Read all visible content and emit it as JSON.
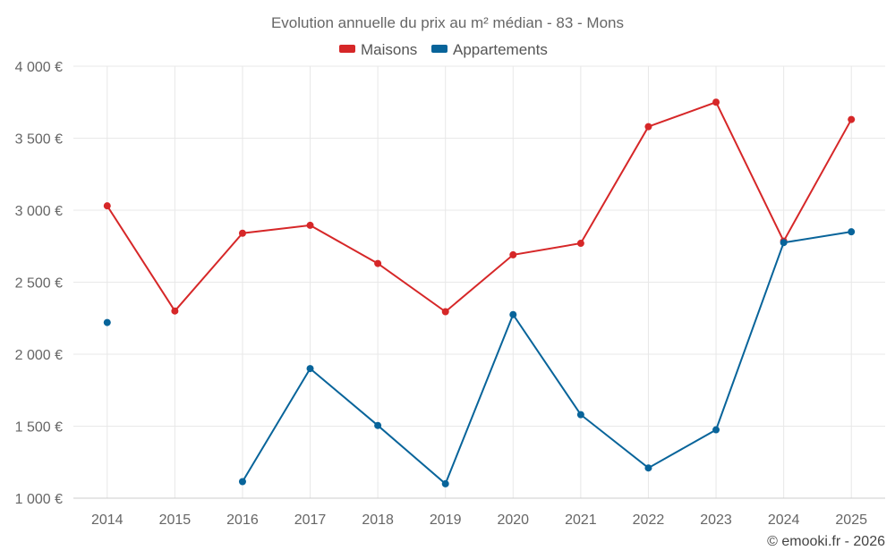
{
  "chart_data": {
    "type": "line",
    "title": "Evolution annuelle du prix au m² médian - 83 - Mons",
    "categories": [
      "2014",
      "2015",
      "2016",
      "2017",
      "2018",
      "2019",
      "2020",
      "2021",
      "2022",
      "2023",
      "2024",
      "2025"
    ],
    "series": [
      {
        "name": "Maisons",
        "color": "#d62728",
        "values": [
          3030,
          2300,
          2840,
          2895,
          2630,
          2295,
          2690,
          2770,
          3580,
          3750,
          2785,
          3630
        ]
      },
      {
        "name": "Appartements",
        "color": "#08649a",
        "values": [
          2220,
          null,
          1115,
          1900,
          1505,
          1100,
          2275,
          1580,
          1210,
          1475,
          2775,
          2850
        ]
      }
    ],
    "yticks": [
      "1 000 €",
      "1 500 €",
      "2 000 €",
      "2 500 €",
      "3 000 €",
      "3 500 €",
      "4 000 €"
    ],
    "ylim": [
      1000,
      4000
    ],
    "ystep": 500,
    "xlabel": "",
    "ylabel": "",
    "legend_position": "top-center",
    "grid": true
  },
  "credit": "© emooki.fr - 2026"
}
